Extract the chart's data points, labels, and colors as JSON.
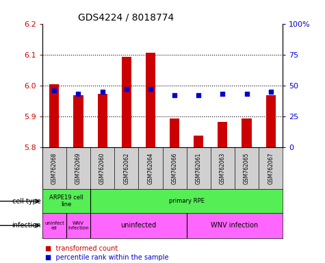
{
  "title": "GDS4224 / 8018774",
  "samples": [
    "GSM762068",
    "GSM762069",
    "GSM762060",
    "GSM762062",
    "GSM762064",
    "GSM762066",
    "GSM762061",
    "GSM762063",
    "GSM762065",
    "GSM762067"
  ],
  "transformed_count": [
    6.005,
    5.968,
    5.972,
    6.093,
    6.107,
    5.893,
    5.837,
    5.883,
    5.893,
    5.968
  ],
  "percentile_rank": [
    46,
    43,
    45,
    47,
    47,
    42,
    42,
    43,
    43,
    45
  ],
  "ylim": [
    5.8,
    6.2
  ],
  "yticks": [
    5.8,
    5.9,
    6.0,
    6.1,
    6.2
  ],
  "y2lim": [
    0,
    100
  ],
  "y2ticks": [
    0,
    25,
    50,
    75,
    100
  ],
  "y2ticklabels": [
    "0",
    "25",
    "50",
    "75",
    "100%"
  ],
  "bar_color": "#cc0000",
  "dot_color": "#0000cc",
  "dotted_lines": [
    5.9,
    6.0,
    6.1
  ],
  "tick_area_color": "#d0d0d0",
  "green_color": "#55ee55",
  "pink_color": "#ff66ff",
  "cell_type_groups": [
    {
      "text": "ARPE19 cell\nline",
      "start": 0,
      "end": 2
    },
    {
      "text": "primary RPE",
      "start": 2,
      "end": 10
    }
  ],
  "infection_groups": [
    {
      "text": "uninfect\ned",
      "start": 0,
      "end": 1
    },
    {
      "text": "WNV\ninfection",
      "start": 1,
      "end": 2
    },
    {
      "text": "uninfected",
      "start": 2,
      "end": 6
    },
    {
      "text": "WNV infection",
      "start": 6,
      "end": 10
    }
  ],
  "cell_type_dividers": [
    2
  ],
  "infection_dividers": [
    1,
    2,
    6
  ],
  "legend_items": [
    {
      "label": "transformed count",
      "color": "#cc0000"
    },
    {
      "label": "percentile rank within the sample",
      "color": "#0000cc"
    }
  ],
  "row_labels": [
    "cell type",
    "infection"
  ]
}
